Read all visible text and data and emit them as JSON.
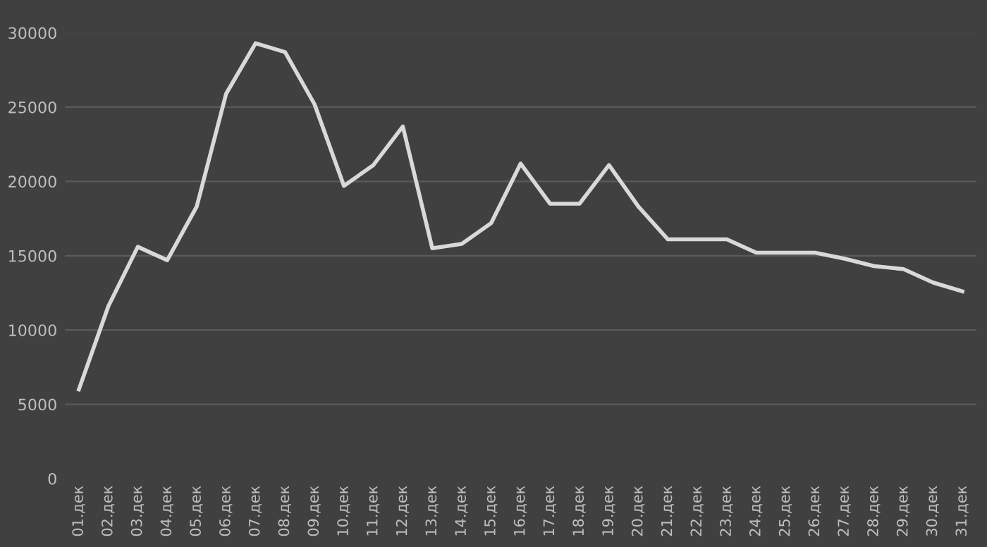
{
  "chart_data": {
    "type": "line",
    "categories": [
      "01.дек",
      "02.дек",
      "03.дек",
      "04.дек",
      "05.дек",
      "06.дек",
      "07.дек",
      "08.дек",
      "09.дек",
      "10.дек",
      "11.дек",
      "12.дек",
      "13.дек",
      "14.дек",
      "15.дек",
      "16.дек",
      "17.дек",
      "18.дек",
      "19.дек",
      "20.дек",
      "21.дек",
      "22.дек",
      "23.дек",
      "24.дек",
      "25.дек",
      "26.дек",
      "27.дек",
      "28.дек",
      "29.дек",
      "30.дек",
      "31.дек"
    ],
    "series": [
      {
        "color": "#d9d9d9",
        "values": [
          6000,
          11600,
          15600,
          14700,
          18300,
          25900,
          29300,
          28700,
          25200,
          19700,
          21100,
          23700,
          15500,
          15800,
          17200,
          21200,
          18500,
          18500,
          21100,
          18300,
          16100,
          16100,
          16100,
          15200,
          15200,
          15200,
          14800,
          14300,
          14100,
          13200,
          12600
        ]
      }
    ],
    "ylim": [
      0,
      30000
    ],
    "yticks": [
      0,
      5000,
      10000,
      15000,
      20000,
      25000,
      30000
    ],
    "grid": "y",
    "marker": "none",
    "line_style": "solid"
  }
}
